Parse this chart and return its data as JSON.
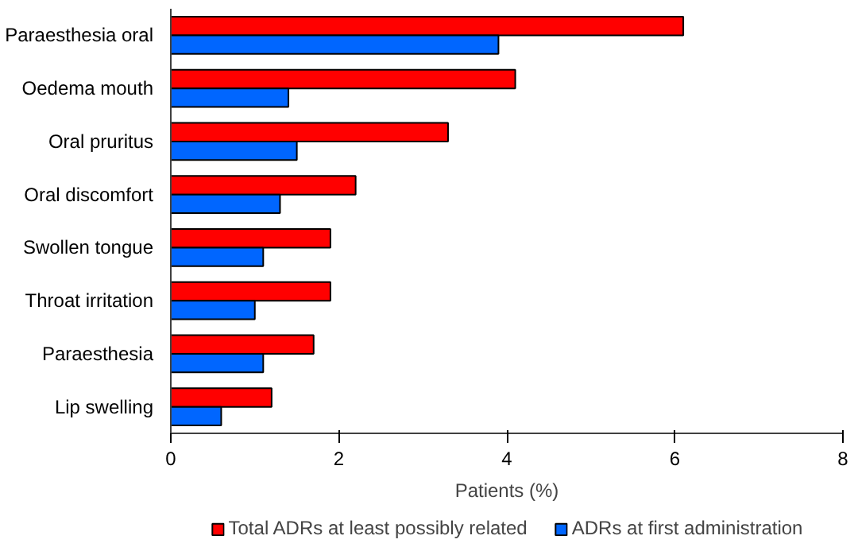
{
  "chart_data": {
    "type": "bar",
    "orientation": "horizontal",
    "xlabel": "Patients (%)",
    "categories": [
      "Paraesthesia oral",
      "Oedema mouth",
      "Oral pruritus",
      "Oral discomfort",
      "Swollen tongue",
      "Throat irritation",
      "Paraesthesia",
      "Lip swelling"
    ],
    "series": [
      {
        "name": "Total ADRs at least possibly related",
        "color": "#ff0000",
        "values": [
          6.1,
          4.1,
          3.3,
          2.2,
          1.9,
          1.9,
          1.7,
          1.2
        ]
      },
      {
        "name": "ADRs at first administration",
        "color": "#0066ff",
        "values": [
          3.9,
          1.4,
          1.5,
          1.3,
          1.1,
          1.0,
          1.1,
          0.6
        ]
      }
    ],
    "xlim": [
      0,
      8
    ],
    "xticks": [
      0,
      2,
      4,
      6,
      8
    ],
    "grid": false,
    "legend": "bottom"
  }
}
